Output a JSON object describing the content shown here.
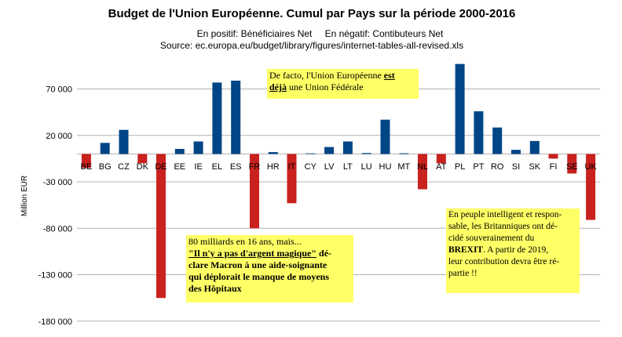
{
  "chart_data": {
    "type": "bar",
    "title": "Budget de l'Union Européenne. Cumul par Pays sur la période 2000-2016",
    "subtitle_left": "En positif: Bénéficiaires Net",
    "subtitle_right": "En négatif: Contibuteurs Net",
    "source": "Source: ec.europa.eu/budget/library/figures/internet-tables-all-revised.xls",
    "ylabel": "Million EUR",
    "ylim": [
      -180000,
      100000
    ],
    "y_ticks": [
      70000,
      20000,
      -30000,
      -80000,
      -130000,
      -180000
    ],
    "y_tick_labels": [
      "70 000",
      "20 000",
      "-30 000",
      "-80 000",
      "-130 000",
      "-180 000"
    ],
    "categories": [
      "BE",
      "BG",
      "CZ",
      "DK",
      "DE",
      "EE",
      "IE",
      "EL",
      "ES",
      "FR",
      "HR",
      "IT",
      "CY",
      "LV",
      "LT",
      "LU",
      "HU",
      "MT",
      "NL",
      "AT",
      "PL",
      "PT",
      "RO",
      "SI",
      "SK",
      "FI",
      "SE",
      "UK"
    ],
    "values": [
      -15000,
      12000,
      26000,
      -10000,
      -155000,
      5500,
      13500,
      77000,
      79000,
      -80000,
      2000,
      -53000,
      700,
      7500,
      13500,
      1000,
      37000,
      800,
      -38000,
      -10000,
      97000,
      46000,
      28500,
      4500,
      14000,
      -5000,
      -21000,
      -71000
    ],
    "colors": {
      "positive": "#004586",
      "negative": "#c9211e"
    },
    "grid": "horizontal",
    "legend": "none"
  },
  "annotations": {
    "top": {
      "pre": "De facto, l'Union Européenne ",
      "em1": "est",
      "em2": "déjà",
      "post": " une Union Fédérale"
    },
    "middle": {
      "line1": "80 milliards en 16 ans, mais...",
      "quote": "\"Il n'y a pas d'argent magique\"",
      "line2_rest": " dé-",
      "line3": "clare Macron à une aide-soignante",
      "line4": "qui déplorait le manque de moyens",
      "line5": "des Hôpitaux"
    },
    "right": {
      "line1": "En peuple intelligent et respon-",
      "line2": "sable, les Britanniques ont dé-",
      "line3": "cidé souverainement du",
      "brexit": "BREXIT",
      "line4_rest": ". A partir de 2019,",
      "line5": "leur contribution devra être ré-",
      "line6": "partie !!"
    }
  }
}
